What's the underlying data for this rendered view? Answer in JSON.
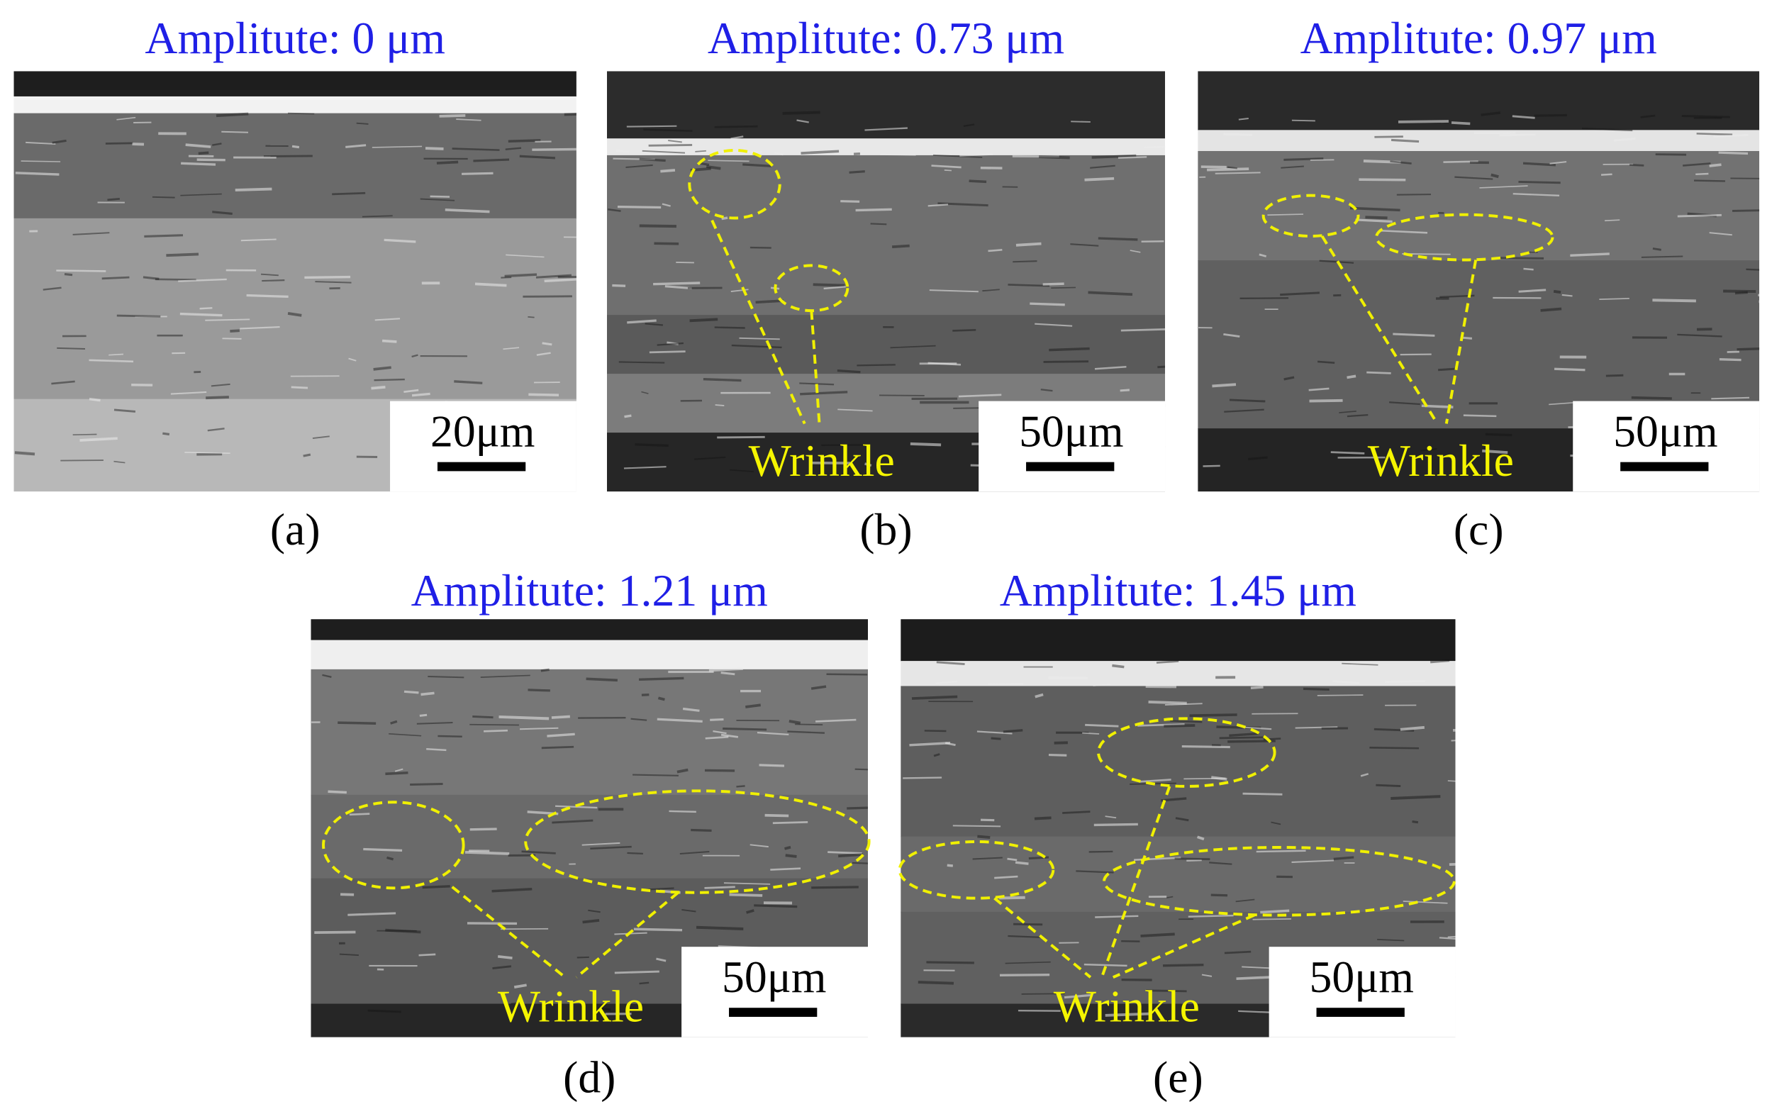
{
  "panels": [
    {
      "title": "Amplitute: 0 μm",
      "scale": "20μm",
      "caption": "(a)"
    },
    {
      "title": "Amplitute: 0.73 μm",
      "scale": "50μm",
      "caption": "(b)",
      "wrinkle": "Wrinkle"
    },
    {
      "title": "Amplitute: 0.97 μm",
      "scale": "50μm",
      "caption": "(c)",
      "wrinkle": "Wrinkle"
    },
    {
      "title": "Amplitute: 1.21 μm",
      "scale": "50μm",
      "caption": "(d)",
      "wrinkle": "Wrinkle"
    },
    {
      "title": "Amplitute: 1.45 μm",
      "scale": "50μm",
      "caption": "(e)",
      "wrinkle": "Wrinkle"
    }
  ]
}
